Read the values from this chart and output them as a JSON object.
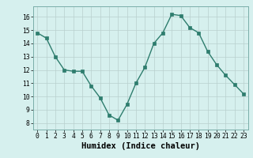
{
  "x": [
    0,
    1,
    2,
    3,
    4,
    5,
    6,
    7,
    8,
    9,
    10,
    11,
    12,
    13,
    14,
    15,
    16,
    17,
    18,
    19,
    20,
    21,
    22,
    23
  ],
  "y": [
    14.8,
    14.4,
    13.0,
    12.0,
    11.9,
    11.9,
    10.8,
    9.9,
    8.6,
    8.2,
    9.4,
    11.0,
    12.2,
    14.0,
    14.8,
    16.2,
    16.1,
    15.2,
    14.8,
    13.4,
    12.4,
    11.6,
    10.9,
    10.2
  ],
  "xlabel": "Humidex (Indice chaleur)",
  "ylim": [
    7.5,
    16.8
  ],
  "xlim": [
    -0.5,
    23.5
  ],
  "yticks": [
    8,
    9,
    10,
    11,
    12,
    13,
    14,
    15,
    16
  ],
  "xticks": [
    0,
    1,
    2,
    3,
    4,
    5,
    6,
    7,
    8,
    9,
    10,
    11,
    12,
    13,
    14,
    15,
    16,
    17,
    18,
    19,
    20,
    21,
    22,
    23
  ],
  "line_color": "#2e7d6e",
  "marker_color": "#2e7d6e",
  "bg_color": "#d6f0ee",
  "grid_color": "#b8d0ce",
  "tick_label_fontsize": 5.8,
  "xlabel_fontsize": 7.5
}
